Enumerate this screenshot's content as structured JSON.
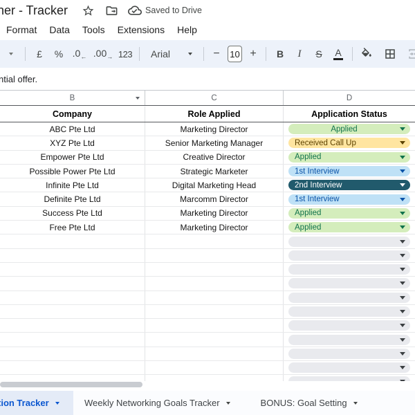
{
  "titlebar": {
    "title": "ner - Tracker",
    "saved_label": "Saved to Drive"
  },
  "menubar": {
    "items": [
      "Format",
      "Data",
      "Tools",
      "Extensions",
      "Help"
    ]
  },
  "toolbar": {
    "currency": "£",
    "percent": "%",
    "decrease_decimal": ".0",
    "decrease_arrow": "←",
    "increase_decimal": ".00",
    "increase_arrow": "→",
    "more_formats": "123",
    "font_name": "Arial",
    "minus": "−",
    "font_size": "10",
    "plus": "+",
    "bold": "B",
    "italic": "I",
    "strikethrough": "S",
    "text_color": "A"
  },
  "icons": {
    "title_actions": [
      "star-icon",
      "move-to-folder-icon",
      "cloud-check-icon"
    ],
    "toolbar": [
      "chevron-down-icon",
      "paint-bucket-icon",
      "borders-grid-icon",
      "merge-cells-icon"
    ]
  },
  "formula_bar": {
    "text": "ntial offer."
  },
  "column_letters": [
    "B",
    "C",
    "D"
  ],
  "table": {
    "headers": [
      "Company",
      "Role Applied",
      "Application Status"
    ],
    "rows": [
      {
        "company": "ABC Pte Ltd",
        "role": "Marketing Director",
        "status": "Applied",
        "status_type": "applied",
        "align": "center"
      },
      {
        "company": "XYZ Pte Ltd",
        "role": "Senior Marketing Manager",
        "status": "Received Call Up",
        "status_type": "received",
        "align": "left"
      },
      {
        "company": "Empower Pte Ltd",
        "role": "Creative Director",
        "status": "Applied",
        "status_type": "applied",
        "align": "left"
      },
      {
        "company": "Possible Power Pte Ltd",
        "role": "Strategic Marketer",
        "status": "1st Interview",
        "status_type": "interview1",
        "align": "left"
      },
      {
        "company": "Infinite Pte Ltd",
        "role": "Digital Marketing Head",
        "status": "2nd Interview",
        "status_type": "interview2",
        "align": "left"
      },
      {
        "company": "Definite Pte Ltd",
        "role": "Marcomm Director",
        "status": "1st Interview",
        "status_type": "interview1",
        "align": "left"
      },
      {
        "company": "Success Pte Ltd",
        "role": "Marketing Director",
        "status": "Applied",
        "status_type": "applied",
        "align": "left"
      },
      {
        "company": "Free Pte Ltd",
        "role": "Marketing Director",
        "status": "Applied",
        "status_type": "applied",
        "align": "left"
      }
    ],
    "empty_status_rows": 11
  },
  "chip_colors": {
    "applied": {
      "bg": "#d4edbc",
      "text": "#11734b"
    },
    "received": {
      "bg": "#ffe5a0",
      "text": "#5c4200"
    },
    "interview1": {
      "bg": "#bfe1f6",
      "text": "#0a53a8"
    },
    "interview2": {
      "bg": "#215a6c",
      "text": "#ffffff"
    },
    "empty": {
      "bg": "#e9eaee",
      "text": "#3c4043"
    }
  },
  "sheet_tabs": {
    "active": "tion Tracker",
    "tabs": [
      "Weekly Networking Goals Tracker",
      "BONUS: Goal Setting"
    ]
  }
}
